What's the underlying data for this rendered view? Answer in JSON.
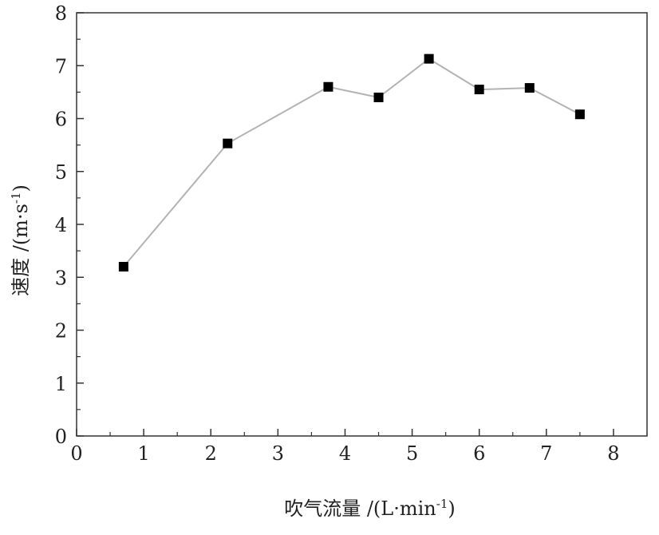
{
  "chart_data": {
    "type": "line",
    "xlabel_main": "吹气流量 /(L·min",
    "xlabel_sup": "-1",
    "xlabel_close": ")",
    "ylabel_main": "速度 /(m·s",
    "ylabel_sup": "-1",
    "ylabel_close": ")",
    "xlim": [
      0,
      8.5
    ],
    "ylim": [
      0,
      8
    ],
    "xticks": [
      0,
      1,
      2,
      3,
      4,
      5,
      6,
      7,
      8
    ],
    "yticks": [
      0,
      1,
      2,
      3,
      4,
      5,
      6,
      7,
      8
    ],
    "grid": false,
    "series": [
      {
        "x": [
          0.7,
          2.25,
          3.75,
          4.5,
          5.25,
          6.0,
          6.75,
          7.5
        ],
        "y": [
          3.2,
          5.53,
          6.6,
          6.4,
          7.13,
          6.55,
          6.58,
          6.08
        ]
      }
    ],
    "colors": {
      "line": "#b3b3b3",
      "marker": "#000000",
      "axis": "#333333"
    }
  }
}
